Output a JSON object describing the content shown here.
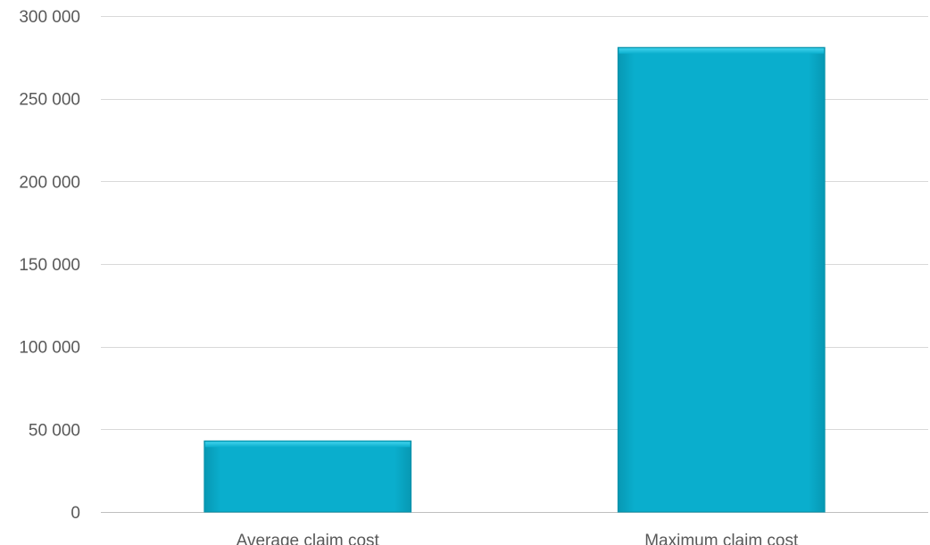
{
  "chart_data": {
    "type": "bar",
    "categories": [
      "Average claim cost",
      "Maximum claim cost"
    ],
    "values": [
      43000,
      281000
    ],
    "ylim": [
      0,
      300000
    ],
    "yticks": [
      0,
      50000,
      100000,
      150000,
      200000,
      250000,
      300000
    ],
    "ytick_labels": [
      "0",
      "50 000",
      "100 000",
      "150 000",
      "200 000",
      "250 000",
      "300 000"
    ],
    "title": "",
    "xlabel": "",
    "ylabel": "",
    "grid": true,
    "legend": "none",
    "bar_color": "#08b0cf",
    "bar_border_color": "#0790a8"
  }
}
